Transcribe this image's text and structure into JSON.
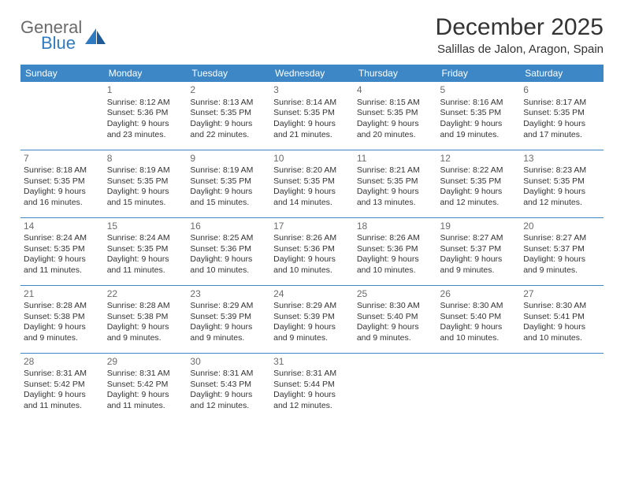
{
  "brand": {
    "part1": "General",
    "part2": "Blue"
  },
  "title": "December 2025",
  "location": "Salillas de Jalon, Aragon, Spain",
  "colors": {
    "header_bg": "#3d87c7",
    "header_text": "#ffffff",
    "row_border": "#3d87c7",
    "logo_gray": "#6a6a6a",
    "logo_blue": "#2f7bc2",
    "daynum": "#6b6b6b",
    "body_text": "#333333",
    "page_bg": "#ffffff"
  },
  "day_headers": [
    "Sunday",
    "Monday",
    "Tuesday",
    "Wednesday",
    "Thursday",
    "Friday",
    "Saturday"
  ],
  "weeks": [
    [
      null,
      {
        "n": "1",
        "sunrise": "Sunrise: 8:12 AM",
        "sunset": "Sunset: 5:36 PM",
        "day1": "Daylight: 9 hours",
        "day2": "and 23 minutes."
      },
      {
        "n": "2",
        "sunrise": "Sunrise: 8:13 AM",
        "sunset": "Sunset: 5:35 PM",
        "day1": "Daylight: 9 hours",
        "day2": "and 22 minutes."
      },
      {
        "n": "3",
        "sunrise": "Sunrise: 8:14 AM",
        "sunset": "Sunset: 5:35 PM",
        "day1": "Daylight: 9 hours",
        "day2": "and 21 minutes."
      },
      {
        "n": "4",
        "sunrise": "Sunrise: 8:15 AM",
        "sunset": "Sunset: 5:35 PM",
        "day1": "Daylight: 9 hours",
        "day2": "and 20 minutes."
      },
      {
        "n": "5",
        "sunrise": "Sunrise: 8:16 AM",
        "sunset": "Sunset: 5:35 PM",
        "day1": "Daylight: 9 hours",
        "day2": "and 19 minutes."
      },
      {
        "n": "6",
        "sunrise": "Sunrise: 8:17 AM",
        "sunset": "Sunset: 5:35 PM",
        "day1": "Daylight: 9 hours",
        "day2": "and 17 minutes."
      }
    ],
    [
      {
        "n": "7",
        "sunrise": "Sunrise: 8:18 AM",
        "sunset": "Sunset: 5:35 PM",
        "day1": "Daylight: 9 hours",
        "day2": "and 16 minutes."
      },
      {
        "n": "8",
        "sunrise": "Sunrise: 8:19 AM",
        "sunset": "Sunset: 5:35 PM",
        "day1": "Daylight: 9 hours",
        "day2": "and 15 minutes."
      },
      {
        "n": "9",
        "sunrise": "Sunrise: 8:19 AM",
        "sunset": "Sunset: 5:35 PM",
        "day1": "Daylight: 9 hours",
        "day2": "and 15 minutes."
      },
      {
        "n": "10",
        "sunrise": "Sunrise: 8:20 AM",
        "sunset": "Sunset: 5:35 PM",
        "day1": "Daylight: 9 hours",
        "day2": "and 14 minutes."
      },
      {
        "n": "11",
        "sunrise": "Sunrise: 8:21 AM",
        "sunset": "Sunset: 5:35 PM",
        "day1": "Daylight: 9 hours",
        "day2": "and 13 minutes."
      },
      {
        "n": "12",
        "sunrise": "Sunrise: 8:22 AM",
        "sunset": "Sunset: 5:35 PM",
        "day1": "Daylight: 9 hours",
        "day2": "and 12 minutes."
      },
      {
        "n": "13",
        "sunrise": "Sunrise: 8:23 AM",
        "sunset": "Sunset: 5:35 PM",
        "day1": "Daylight: 9 hours",
        "day2": "and 12 minutes."
      }
    ],
    [
      {
        "n": "14",
        "sunrise": "Sunrise: 8:24 AM",
        "sunset": "Sunset: 5:35 PM",
        "day1": "Daylight: 9 hours",
        "day2": "and 11 minutes."
      },
      {
        "n": "15",
        "sunrise": "Sunrise: 8:24 AM",
        "sunset": "Sunset: 5:35 PM",
        "day1": "Daylight: 9 hours",
        "day2": "and 11 minutes."
      },
      {
        "n": "16",
        "sunrise": "Sunrise: 8:25 AM",
        "sunset": "Sunset: 5:36 PM",
        "day1": "Daylight: 9 hours",
        "day2": "and 10 minutes."
      },
      {
        "n": "17",
        "sunrise": "Sunrise: 8:26 AM",
        "sunset": "Sunset: 5:36 PM",
        "day1": "Daylight: 9 hours",
        "day2": "and 10 minutes."
      },
      {
        "n": "18",
        "sunrise": "Sunrise: 8:26 AM",
        "sunset": "Sunset: 5:36 PM",
        "day1": "Daylight: 9 hours",
        "day2": "and 10 minutes."
      },
      {
        "n": "19",
        "sunrise": "Sunrise: 8:27 AM",
        "sunset": "Sunset: 5:37 PM",
        "day1": "Daylight: 9 hours",
        "day2": "and 9 minutes."
      },
      {
        "n": "20",
        "sunrise": "Sunrise: 8:27 AM",
        "sunset": "Sunset: 5:37 PM",
        "day1": "Daylight: 9 hours",
        "day2": "and 9 minutes."
      }
    ],
    [
      {
        "n": "21",
        "sunrise": "Sunrise: 8:28 AM",
        "sunset": "Sunset: 5:38 PM",
        "day1": "Daylight: 9 hours",
        "day2": "and 9 minutes."
      },
      {
        "n": "22",
        "sunrise": "Sunrise: 8:28 AM",
        "sunset": "Sunset: 5:38 PM",
        "day1": "Daylight: 9 hours",
        "day2": "and 9 minutes."
      },
      {
        "n": "23",
        "sunrise": "Sunrise: 8:29 AM",
        "sunset": "Sunset: 5:39 PM",
        "day1": "Daylight: 9 hours",
        "day2": "and 9 minutes."
      },
      {
        "n": "24",
        "sunrise": "Sunrise: 8:29 AM",
        "sunset": "Sunset: 5:39 PM",
        "day1": "Daylight: 9 hours",
        "day2": "and 9 minutes."
      },
      {
        "n": "25",
        "sunrise": "Sunrise: 8:30 AM",
        "sunset": "Sunset: 5:40 PM",
        "day1": "Daylight: 9 hours",
        "day2": "and 9 minutes."
      },
      {
        "n": "26",
        "sunrise": "Sunrise: 8:30 AM",
        "sunset": "Sunset: 5:40 PM",
        "day1": "Daylight: 9 hours",
        "day2": "and 10 minutes."
      },
      {
        "n": "27",
        "sunrise": "Sunrise: 8:30 AM",
        "sunset": "Sunset: 5:41 PM",
        "day1": "Daylight: 9 hours",
        "day2": "and 10 minutes."
      }
    ],
    [
      {
        "n": "28",
        "sunrise": "Sunrise: 8:31 AM",
        "sunset": "Sunset: 5:42 PM",
        "day1": "Daylight: 9 hours",
        "day2": "and 11 minutes."
      },
      {
        "n": "29",
        "sunrise": "Sunrise: 8:31 AM",
        "sunset": "Sunset: 5:42 PM",
        "day1": "Daylight: 9 hours",
        "day2": "and 11 minutes."
      },
      {
        "n": "30",
        "sunrise": "Sunrise: 8:31 AM",
        "sunset": "Sunset: 5:43 PM",
        "day1": "Daylight: 9 hours",
        "day2": "and 12 minutes."
      },
      {
        "n": "31",
        "sunrise": "Sunrise: 8:31 AM",
        "sunset": "Sunset: 5:44 PM",
        "day1": "Daylight: 9 hours",
        "day2": "and 12 minutes."
      },
      null,
      null,
      null
    ]
  ]
}
